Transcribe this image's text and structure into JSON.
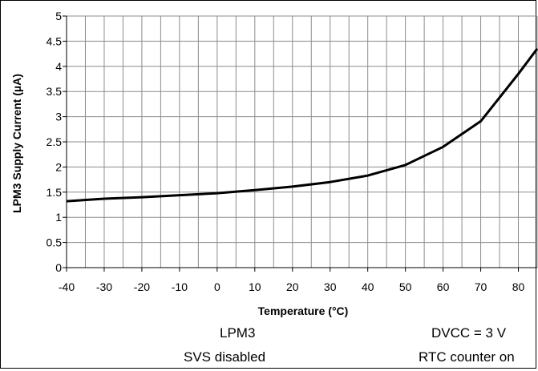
{
  "chart_data": {
    "type": "line",
    "title": "",
    "xlabel": "Temperature (°C)",
    "ylabel": "LPM3 Supply Current (µA)",
    "xlim": [
      -40,
      85
    ],
    "ylim": [
      0,
      5
    ],
    "xticks": [
      -40,
      -30,
      -20,
      -10,
      0,
      10,
      20,
      30,
      40,
      50,
      60,
      70,
      80
    ],
    "yticks": [
      0,
      0.5,
      1,
      1.5,
      2,
      2.5,
      3,
      3.5,
      4,
      4.5,
      5
    ],
    "grid": true,
    "series": [
      {
        "color": "#000000",
        "x": [
          -40,
          -30,
          -20,
          -10,
          0,
          10,
          20,
          30,
          40,
          50,
          60,
          70,
          80,
          85
        ],
        "y": [
          1.32,
          1.37,
          1.4,
          1.44,
          1.48,
          1.54,
          1.61,
          1.7,
          1.83,
          2.04,
          2.4,
          2.91,
          3.85,
          4.35
        ]
      }
    ]
  },
  "notes": {
    "mode": "LPM3",
    "supply": "DVCC = 3 V",
    "svs": "SVS disabled",
    "rtc": "RTC counter on"
  }
}
